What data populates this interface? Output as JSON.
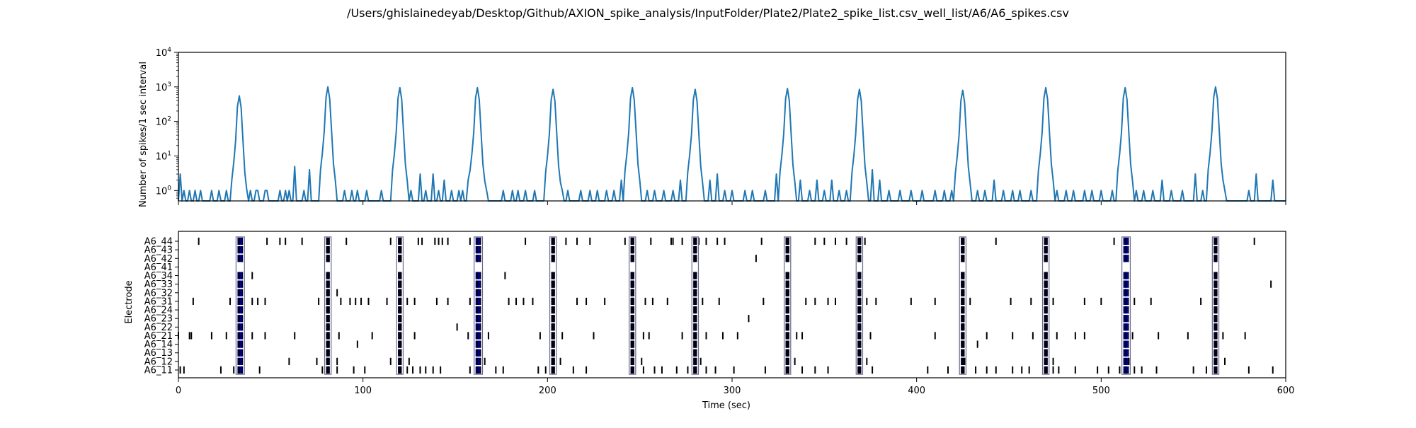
{
  "figure": {
    "title": "/Users/ghislainedeyab/Desktop/Github/AXION_spike_analysis/InputFolder/Plate2/Plate2_spike_list.csv_well_list/A6/A6_spikes.csv"
  },
  "colors": {
    "line": "#1f77b4",
    "spike": "#000000",
    "burst_fill": "#0000ff",
    "burst_box": "#6a6a8a"
  },
  "chart_data": [
    {
      "type": "line",
      "ylabel": "Number of spikes/1 sec interval",
      "xlabel": "",
      "yscale": "log",
      "xlim": [
        0,
        600
      ],
      "ylim": [
        0.5,
        10000
      ],
      "yticks": [
        {
          "value": 1,
          "label": "10^0"
        },
        {
          "value": 10,
          "label": "10^1"
        },
        {
          "value": 100,
          "label": "10^2"
        },
        {
          "value": 1000,
          "label": "10^3"
        },
        {
          "value": 10000,
          "label": "10^4"
        }
      ],
      "peaks": [
        {
          "t": 33,
          "h": 550
        },
        {
          "t": 81,
          "h": 1000
        },
        {
          "t": 120,
          "h": 950
        },
        {
          "t": 162,
          "h": 950
        },
        {
          "t": 203,
          "h": 850
        },
        {
          "t": 246,
          "h": 950
        },
        {
          "t": 280,
          "h": 850
        },
        {
          "t": 330,
          "h": 900
        },
        {
          "t": 369,
          "h": 850
        },
        {
          "t": 425,
          "h": 800
        },
        {
          "t": 470,
          "h": 950
        },
        {
          "t": 513,
          "h": 950
        },
        {
          "t": 562,
          "h": 1000
        }
      ],
      "background_counts": [
        {
          "t": 1,
          "h": 3
        },
        {
          "t": 3,
          "h": 1
        },
        {
          "t": 6,
          "h": 1
        },
        {
          "t": 9,
          "h": 1
        },
        {
          "t": 12,
          "h": 1
        },
        {
          "t": 18,
          "h": 1
        },
        {
          "t": 22,
          "h": 1
        },
        {
          "t": 26,
          "h": 1
        },
        {
          "t": 29,
          "h": 1
        },
        {
          "t": 39,
          "h": 1
        },
        {
          "t": 42,
          "h": 1
        },
        {
          "t": 43,
          "h": 1
        },
        {
          "t": 47,
          "h": 1
        },
        {
          "t": 48,
          "h": 1
        },
        {
          "t": 55,
          "h": 1
        },
        {
          "t": 58,
          "h": 1
        },
        {
          "t": 60,
          "h": 1
        },
        {
          "t": 63,
          "h": 5
        },
        {
          "t": 68,
          "h": 1
        },
        {
          "t": 71,
          "h": 4
        },
        {
          "t": 85,
          "h": 2
        },
        {
          "t": 90,
          "h": 1
        },
        {
          "t": 94,
          "h": 1
        },
        {
          "t": 97,
          "h": 1
        },
        {
          "t": 102,
          "h": 1
        },
        {
          "t": 110,
          "h": 1
        },
        {
          "t": 116,
          "h": 1
        },
        {
          "t": 126,
          "h": 1
        },
        {
          "t": 131,
          "h": 3
        },
        {
          "t": 134,
          "h": 1
        },
        {
          "t": 138,
          "h": 3
        },
        {
          "t": 141,
          "h": 1
        },
        {
          "t": 144,
          "h": 2
        },
        {
          "t": 148,
          "h": 1
        },
        {
          "t": 152,
          "h": 1
        },
        {
          "t": 154,
          "h": 1
        },
        {
          "t": 157,
          "h": 2
        },
        {
          "t": 167,
          "h": 1
        },
        {
          "t": 176,
          "h": 1
        },
        {
          "t": 181,
          "h": 1
        },
        {
          "t": 184,
          "h": 1
        },
        {
          "t": 188,
          "h": 1
        },
        {
          "t": 193,
          "h": 1
        },
        {
          "t": 199,
          "h": 1
        },
        {
          "t": 208,
          "h": 1
        },
        {
          "t": 211,
          "h": 1
        },
        {
          "t": 218,
          "h": 1
        },
        {
          "t": 223,
          "h": 1
        },
        {
          "t": 227,
          "h": 1
        },
        {
          "t": 232,
          "h": 1
        },
        {
          "t": 236,
          "h": 1
        },
        {
          "t": 240,
          "h": 2
        },
        {
          "t": 250,
          "h": 1
        },
        {
          "t": 254,
          "h": 1
        },
        {
          "t": 258,
          "h": 1
        },
        {
          "t": 263,
          "h": 1
        },
        {
          "t": 268,
          "h": 1
        },
        {
          "t": 272,
          "h": 2
        },
        {
          "t": 288,
          "h": 2
        },
        {
          "t": 292,
          "h": 3
        },
        {
          "t": 296,
          "h": 1
        },
        {
          "t": 300,
          "h": 1
        },
        {
          "t": 307,
          "h": 1
        },
        {
          "t": 311,
          "h": 1
        },
        {
          "t": 318,
          "h": 1
        },
        {
          "t": 324,
          "h": 3
        },
        {
          "t": 337,
          "h": 2
        },
        {
          "t": 342,
          "h": 1
        },
        {
          "t": 346,
          "h": 2
        },
        {
          "t": 350,
          "h": 1
        },
        {
          "t": 354,
          "h": 2
        },
        {
          "t": 358,
          "h": 1
        },
        {
          "t": 362,
          "h": 1
        },
        {
          "t": 376,
          "h": 4
        },
        {
          "t": 380,
          "h": 2
        },
        {
          "t": 385,
          "h": 1
        },
        {
          "t": 391,
          "h": 1
        },
        {
          "t": 397,
          "h": 1
        },
        {
          "t": 403,
          "h": 1
        },
        {
          "t": 410,
          "h": 1
        },
        {
          "t": 415,
          "h": 1
        },
        {
          "t": 419,
          "h": 1
        },
        {
          "t": 433,
          "h": 1
        },
        {
          "t": 437,
          "h": 1
        },
        {
          "t": 442,
          "h": 2
        },
        {
          "t": 447,
          "h": 1
        },
        {
          "t": 452,
          "h": 1
        },
        {
          "t": 456,
          "h": 1
        },
        {
          "t": 462,
          "h": 1
        },
        {
          "t": 476,
          "h": 1
        },
        {
          "t": 481,
          "h": 1
        },
        {
          "t": 485,
          "h": 1
        },
        {
          "t": 491,
          "h": 1
        },
        {
          "t": 495,
          "h": 1
        },
        {
          "t": 500,
          "h": 1
        },
        {
          "t": 506,
          "h": 1
        },
        {
          "t": 519,
          "h": 1
        },
        {
          "t": 523,
          "h": 1
        },
        {
          "t": 528,
          "h": 1
        },
        {
          "t": 533,
          "h": 2
        },
        {
          "t": 538,
          "h": 1
        },
        {
          "t": 544,
          "h": 1
        },
        {
          "t": 551,
          "h": 3
        },
        {
          "t": 555,
          "h": 1
        },
        {
          "t": 567,
          "h": 1
        },
        {
          "t": 580,
          "h": 1
        },
        {
          "t": 584,
          "h": 3
        },
        {
          "t": 593,
          "h": 2
        }
      ]
    },
    {
      "type": "raster",
      "xlabel": "Time (sec)",
      "ylabel": "Electrode",
      "xlim": [
        0,
        600
      ],
      "xticks": [
        0,
        100,
        200,
        300,
        400,
        500,
        600
      ],
      "electrodes": [
        "A6_11",
        "A6_12",
        "A6_13",
        "A6_14",
        "A6_21",
        "A6_22",
        "A6_23",
        "A6_24",
        "A6_31",
        "A6_32",
        "A6_33",
        "A6_34",
        "A6_41",
        "A6_42",
        "A6_43",
        "A6_44"
      ],
      "bursts": [
        {
          "start": 32,
          "end": 35
        },
        {
          "start": 80,
          "end": 82
        },
        {
          "start": 119,
          "end": 121
        },
        {
          "start": 161,
          "end": 164
        },
        {
          "start": 202,
          "end": 204
        },
        {
          "start": 245,
          "end": 247
        },
        {
          "start": 279,
          "end": 281
        },
        {
          "start": 329,
          "end": 331
        },
        {
          "start": 368,
          "end": 370
        },
        {
          "start": 424,
          "end": 426
        },
        {
          "start": 469,
          "end": 471
        },
        {
          "start": 512,
          "end": 515
        },
        {
          "start": 561,
          "end": 563
        }
      ],
      "burst_electrodes": [
        "A6_11",
        "A6_12",
        "A6_13",
        "A6_14",
        "A6_21",
        "A6_22",
        "A6_23",
        "A6_24",
        "A6_31",
        "A6_32",
        "A6_33",
        "A6_34",
        "A6_42",
        "A6_43",
        "A6_44"
      ],
      "spikes": {
        "A6_11": [
          1,
          3,
          23,
          30,
          44,
          78,
          86,
          95,
          101,
          124,
          127,
          131,
          134,
          138,
          142,
          158,
          172,
          176,
          195,
          199,
          214,
          221,
          252,
          258,
          262,
          270,
          276,
          286,
          291,
          301,
          318,
          338,
          345,
          352,
          376,
          406,
          417,
          432,
          438,
          443,
          452,
          457,
          461,
          474,
          477,
          486,
          498,
          504,
          510,
          518,
          522,
          530,
          550,
          557,
          580,
          593
        ],
        "A6_12": [
          60,
          75,
          86,
          115,
          125,
          166,
          207,
          251,
          283,
          334,
          373,
          426,
          474,
          515,
          567
        ],
        "A6_13": [],
        "A6_14": [
          97,
          433
        ],
        "A6_21": [
          0,
          6,
          7,
          18,
          26,
          40,
          47,
          63,
          87,
          105,
          128,
          157,
          168,
          196,
          208,
          225,
          252,
          255,
          273,
          286,
          295,
          303,
          335,
          338,
          375,
          410,
          438,
          452,
          463,
          470,
          476,
          486,
          491,
          517,
          531,
          547,
          566,
          578
        ],
        "A6_22": [
          151
        ],
        "A6_23": [
          309
        ],
        "A6_24": [],
        "A6_31": [
          8,
          28,
          40,
          43,
          47,
          76,
          88,
          93,
          96,
          99,
          103,
          113,
          124,
          128,
          140,
          146,
          158,
          179,
          183,
          187,
          192,
          216,
          221,
          231,
          253,
          257,
          265,
          284,
          293,
          317,
          340,
          345,
          352,
          356,
          373,
          378,
          397,
          410,
          429,
          451,
          462,
          474,
          491,
          500,
          518,
          527,
          554
        ],
        "A6_32": [
          86
        ],
        "A6_33": [
          592
        ],
        "A6_34": [
          40,
          177
        ],
        "A6_41": [],
        "A6_42": [
          313
        ],
        "A6_43": [],
        "A6_44": [
          11,
          48,
          55,
          58,
          67,
          91,
          115,
          130,
          132,
          139,
          141,
          143,
          146,
          158,
          188,
          210,
          216,
          223,
          242,
          256,
          267,
          268,
          273,
          282,
          286,
          292,
          296,
          316,
          345,
          350,
          356,
          362,
          372,
          443,
          507,
          583
        ]
      }
    }
  ]
}
